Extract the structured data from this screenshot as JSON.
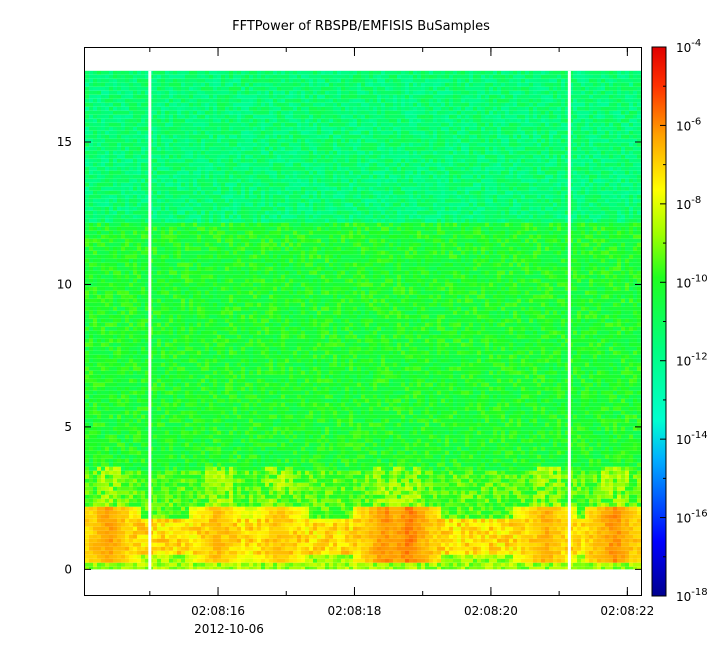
{
  "chart_data": {
    "type": "heatmap",
    "title": "FFTPower of RBSPB/EMFISIS  BuSamples",
    "xlabel": "",
    "ylabel": "",
    "x_range": [
      "02:08:14.05",
      "02:08:22.20"
    ],
    "x_ticks": [
      {
        "value": "02:08:16",
        "label": "02:08:16"
      },
      {
        "value": "02:08:18",
        "label": "02:08:18"
      },
      {
        "value": "02:08:20",
        "label": "02:08:20"
      },
      {
        "value": "02:08:22",
        "label": "02:08:22"
      }
    ],
    "x_date_label": "2012-10-06",
    "y_range": [
      -0.9,
      18.3
    ],
    "y_ticks": [
      0,
      5,
      10,
      15
    ],
    "y_data_max": 17.5,
    "data_gaps_seconds": [
      15.0,
      21.15
    ],
    "colorbar": {
      "scale": "log",
      "range_exponents": [
        -18,
        -4
      ],
      "ticks": [
        {
          "exp": -4,
          "base": "10",
          "sup": "-4"
        },
        {
          "exp": -6,
          "base": "10",
          "sup": "-6"
        },
        {
          "exp": -8,
          "base": "10",
          "sup": "-8"
        },
        {
          "exp": -10,
          "base": "10",
          "sup": "-10"
        },
        {
          "exp": -12,
          "base": "10",
          "sup": "-12"
        },
        {
          "exp": -14,
          "base": "10",
          "sup": "-14"
        },
        {
          "exp": -16,
          "base": "10",
          "sup": "-16"
        },
        {
          "exp": -18,
          "base": "10",
          "sup": "-18"
        }
      ]
    },
    "bands": [
      {
        "y_from": 12.2,
        "y_to": 17.5,
        "log_power": -11.5
      },
      {
        "y_from": 3.5,
        "y_to": 12.2,
        "log_power": -10.2
      },
      {
        "y_from": 1.8,
        "y_to": 3.5,
        "log_power": -9.5
      },
      {
        "y_from": 0.5,
        "y_to": 1.8,
        "log_power": -7.2
      },
      {
        "y_from": 0.0,
        "y_to": 0.5,
        "log_power": -8.8
      }
    ],
    "bursts": [
      {
        "t": 14.4,
        "log_power": -6.2
      },
      {
        "t": 16.0,
        "log_power": -6.6
      },
      {
        "t": 16.9,
        "log_power": -6.7
      },
      {
        "t": 18.45,
        "log_power": -6.0
      },
      {
        "t": 18.8,
        "log_power": -5.8
      },
      {
        "t": 20.8,
        "log_power": -6.4
      },
      {
        "t": 21.8,
        "log_power": -6.0
      }
    ]
  }
}
